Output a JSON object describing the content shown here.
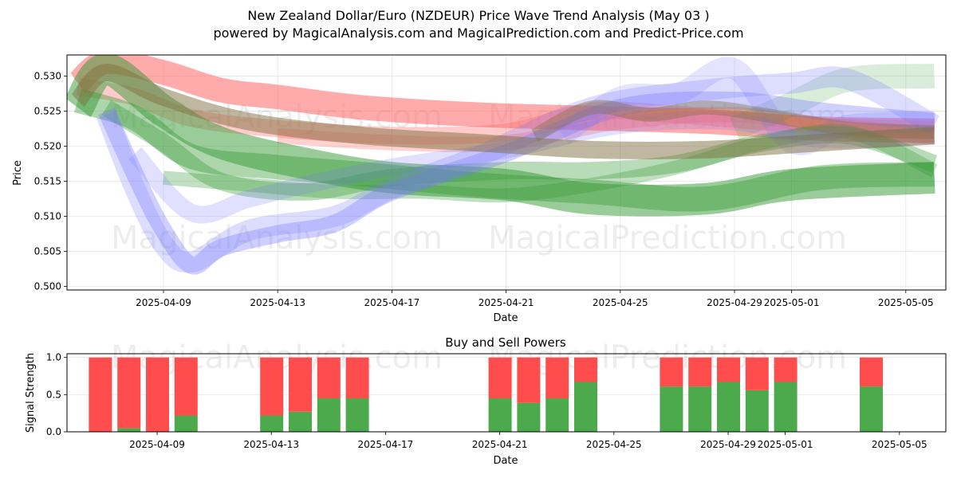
{
  "page": {
    "title": "New Zealand Dollar/Euro (NZDEUR) Price Wave Trend Analysis (May 03 )",
    "subtitle": "powered by MagicalAnalysis.com and MagicalPrediction.com and Predict-Price.com",
    "watermarks": [
      "MagicalAnalysis.com",
      "MagicalPrediction.com"
    ]
  },
  "chart_data": [
    {
      "type": "area",
      "title": "",
      "xlabel": "Date",
      "ylabel": "Price",
      "x_ticks": [
        "2025-04-09",
        "2025-04-13",
        "2025-04-17",
        "2025-04-21",
        "2025-04-25",
        "2025-04-29",
        "2025-05-01",
        "2025-05-05"
      ],
      "y_ticks": [
        "0.500",
        "0.505",
        "0.510",
        "0.515",
        "0.520",
        "0.525",
        "0.530"
      ],
      "ylim": [
        0.4995,
        0.533
      ],
      "xlim": [
        "2025-04-05T12:00",
        "2025-05-06T12:00"
      ],
      "grid": true,
      "colors": {
        "red": "#ff6666",
        "green": "#339933",
        "blue": "#7777ff",
        "olive": "#807040"
      },
      "series": [
        {
          "color": "red",
          "x": [
            "2025-04-06",
            "2025-04-07",
            "2025-04-09",
            "2025-04-11",
            "2025-04-13",
            "2025-04-16",
            "2025-04-20",
            "2025-04-24",
            "2025-04-28",
            "2025-05-02",
            "2025-05-06"
          ],
          "y": [
            0.529,
            0.532,
            0.5305,
            0.528,
            0.527,
            0.5255,
            0.5245,
            0.524,
            0.5235,
            0.5225,
            0.5222
          ],
          "width": 0.0035,
          "opacity": 0.55
        },
        {
          "color": "red",
          "x": [
            "2025-04-06",
            "2025-04-08",
            "2025-04-10",
            "2025-04-13",
            "2025-04-17",
            "2025-04-21",
            "2025-04-24",
            "2025-04-27",
            "2025-04-30",
            "2025-05-03",
            "2025-05-06"
          ],
          "y": [
            0.5285,
            0.527,
            0.524,
            0.5225,
            0.5215,
            0.522,
            0.525,
            0.5245,
            0.5235,
            0.5225,
            0.5215
          ],
          "width": 0.0025,
          "opacity": 0.35
        },
        {
          "color": "red",
          "x": [
            "2025-04-13",
            "2025-04-17",
            "2025-04-21",
            "2025-04-25",
            "2025-04-29",
            "2025-05-02",
            "2025-05-06"
          ],
          "y": [
            0.5215,
            0.5205,
            0.5205,
            0.5235,
            0.5245,
            0.523,
            0.5225
          ],
          "width": 0.0022,
          "opacity": 0.3
        },
        {
          "color": "green",
          "x": [
            "2025-04-06",
            "2025-04-07",
            "2025-04-09",
            "2025-04-11",
            "2025-04-14",
            "2025-04-17",
            "2025-04-21",
            "2025-04-24",
            "2025-04-28",
            "2025-05-01",
            "2025-05-06"
          ],
          "y": [
            0.5255,
            0.531,
            0.525,
            0.5205,
            0.5175,
            0.5155,
            0.5145,
            0.5125,
            0.5125,
            0.5145,
            0.5155
          ],
          "width": 0.0045,
          "opacity": 0.5
        },
        {
          "color": "green",
          "x": [
            "2025-04-06",
            "2025-04-08",
            "2025-04-10",
            "2025-04-13",
            "2025-04-16",
            "2025-04-20",
            "2025-04-24",
            "2025-04-28",
            "2025-05-02",
            "2025-05-06"
          ],
          "y": [
            0.5265,
            0.524,
            0.5185,
            0.517,
            0.516,
            0.5145,
            0.5135,
            0.5125,
            0.5155,
            0.516
          ],
          "width": 0.0035,
          "opacity": 0.4
        },
        {
          "color": "green",
          "x": [
            "2025-04-07",
            "2025-04-09",
            "2025-04-11",
            "2025-04-14",
            "2025-04-17",
            "2025-04-21",
            "2025-04-24",
            "2025-04-27",
            "2025-04-30",
            "2025-05-03",
            "2025-05-06"
          ],
          "y": [
            0.5255,
            0.5205,
            0.515,
            0.5135,
            0.5155,
            0.5165,
            0.5165,
            0.5175,
            0.5205,
            0.5215,
            0.5175
          ],
          "width": 0.0025,
          "opacity": 0.35
        },
        {
          "color": "green",
          "x": [
            "2025-04-09",
            "2025-04-12",
            "2025-04-15",
            "2025-04-18",
            "2025-04-21",
            "2025-04-24",
            "2025-04-27",
            "2025-04-30",
            "2025-05-03",
            "2025-05-06"
          ],
          "y": [
            0.5155,
            0.5145,
            0.5135,
            0.5135,
            0.513,
            0.5145,
            0.517,
            0.5205,
            0.522,
            0.5165
          ],
          "width": 0.002,
          "opacity": 0.3
        },
        {
          "color": "green",
          "x": [
            "2025-04-29",
            "2025-05-01",
            "2025-05-03",
            "2025-05-06"
          ],
          "y": [
            0.5225,
            0.526,
            0.5295,
            0.53
          ],
          "width": 0.0035,
          "opacity": 0.18
        },
        {
          "color": "blue",
          "x": [
            "2025-04-07",
            "2025-04-08",
            "2025-04-09",
            "2025-04-10",
            "2025-04-11",
            "2025-04-13",
            "2025-04-15",
            "2025-04-17",
            "2025-04-21",
            "2025-04-25",
            "2025-04-29",
            "2025-05-02",
            "2025-05-06"
          ],
          "y": [
            0.525,
            0.516,
            0.508,
            0.503,
            0.5055,
            0.5075,
            0.509,
            0.5135,
            0.519,
            0.5255,
            0.5265,
            0.525,
            0.5235
          ],
          "width": 0.0025,
          "opacity": 0.35
        },
        {
          "color": "blue",
          "x": [
            "2025-04-07",
            "2025-04-08",
            "2025-04-09",
            "2025-04-10",
            "2025-04-12",
            "2025-04-15",
            "2025-04-17",
            "2025-04-20",
            "2025-04-24",
            "2025-04-28",
            "2025-05-01",
            "2025-05-03",
            "2025-05-06"
          ],
          "y": [
            0.5245,
            0.514,
            0.506,
            0.5035,
            0.508,
            0.51,
            0.514,
            0.5185,
            0.5255,
            0.528,
            0.529,
            0.5295,
            0.523
          ],
          "width": 0.003,
          "opacity": 0.25
        },
        {
          "color": "blue",
          "x": [
            "2025-04-08",
            "2025-04-10",
            "2025-04-12",
            "2025-04-14",
            "2025-04-17",
            "2025-04-21",
            "2025-04-25",
            "2025-04-29",
            "2025-05-02",
            "2025-05-06"
          ],
          "y": [
            0.519,
            0.5105,
            0.5125,
            0.5145,
            0.517,
            0.5195,
            0.523,
            0.5235,
            0.521,
            0.5215
          ],
          "width": 0.0025,
          "opacity": 0.22
        },
        {
          "color": "blue",
          "x": [
            "2025-04-23",
            "2025-04-25",
            "2025-04-27",
            "2025-04-29",
            "2025-05-01",
            "2025-05-03",
            "2025-05-06"
          ],
          "y": [
            0.5215,
            0.527,
            0.5275,
            0.531,
            0.5205,
            0.523,
            0.5235
          ],
          "width": 0.003,
          "opacity": 0.2
        },
        {
          "color": "olive",
          "x": [
            "2025-04-06",
            "2025-04-07",
            "2025-04-09",
            "2025-04-12",
            "2025-04-16",
            "2025-04-20",
            "2025-04-24",
            "2025-04-28",
            "2025-05-02",
            "2025-05-06"
          ],
          "y": [
            0.5265,
            0.5305,
            0.527,
            0.5235,
            0.5215,
            0.5205,
            0.5195,
            0.5195,
            0.5205,
            0.5215
          ],
          "width": 0.0025,
          "opacity": 0.5
        },
        {
          "color": "olive",
          "x": [
            "2025-04-22",
            "2025-04-24",
            "2025-04-26",
            "2025-04-28",
            "2025-04-30",
            "2025-05-03",
            "2025-05-06"
          ],
          "y": [
            0.5215,
            0.5255,
            0.5245,
            0.5255,
            0.5245,
            0.5225,
            0.522
          ],
          "width": 0.002,
          "opacity": 0.4
        }
      ]
    },
    {
      "type": "bar",
      "title": "Buy and Sell Powers",
      "xlabel": "Date",
      "ylabel": "Signal Strength",
      "x_ticks": [
        "2025-04-09",
        "2025-04-13",
        "2025-04-17",
        "2025-04-21",
        "2025-04-25",
        "2025-04-29",
        "2025-05-01",
        "2025-05-05"
      ],
      "y_ticks": [
        "0.0",
        "0.5",
        "1.0"
      ],
      "ylim": [
        0,
        1.05
      ],
      "colors": {
        "buy": "#4caa4c",
        "sell": "#ff4d4d"
      },
      "dates": [
        "2025-04-07",
        "2025-04-08",
        "2025-04-09",
        "2025-04-10",
        "2025-04-13",
        "2025-04-14",
        "2025-04-15",
        "2025-04-16",
        "2025-04-21",
        "2025-04-22",
        "2025-04-23",
        "2025-04-24",
        "2025-04-27",
        "2025-04-28",
        "2025-04-29",
        "2025-04-30",
        "2025-05-01",
        "2025-05-04"
      ],
      "buy": [
        0.0,
        0.05,
        0.0,
        0.22,
        0.22,
        0.27,
        0.45,
        0.45,
        0.45,
        0.39,
        0.45,
        0.67,
        0.61,
        0.61,
        0.67,
        0.56,
        0.67,
        0.61
      ],
      "sell": [
        1.0,
        0.95,
        1.0,
        0.78,
        0.78,
        0.73,
        0.55,
        0.55,
        0.55,
        0.61,
        0.55,
        0.33,
        0.39,
        0.39,
        0.33,
        0.44,
        0.33,
        0.39
      ]
    }
  ]
}
